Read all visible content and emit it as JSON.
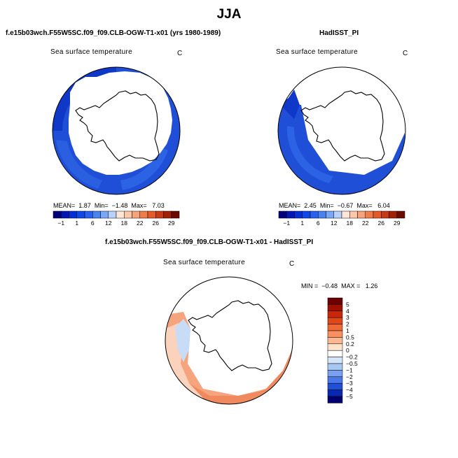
{
  "figure": {
    "season": "JJA",
    "panels": [
      {
        "title": "f.e15b03wch.F55W5SC.f09_f09.CLB-OGW-T1-x01 (yrs 1980-1989)",
        "variable": "Sea surface temperature",
        "unit": "C",
        "stats": {
          "mean_label": "MEAN=",
          "mean": "1.87",
          "min_label": "Min=",
          "min": "−1.48",
          "max_label": "Max=",
          "max": "7.03"
        },
        "colorbar": {
          "ticks": [
            "−1",
            "1",
            "6",
            "12",
            "18",
            "22",
            "26",
            "29"
          ],
          "colors": [
            "#00007a",
            "#0018b4",
            "#0030d8",
            "#1048e8",
            "#2860f0",
            "#4a82f0",
            "#7aa8f5",
            "#b8d0fa",
            "#fde6d8",
            "#fbc8aa",
            "#f6a27a",
            "#f07c4c",
            "#e55a2a",
            "#c83a14",
            "#a02008",
            "#6c0a00"
          ]
        }
      },
      {
        "title": "HadISST_PI",
        "variable": "Sea surface temperature",
        "unit": "C",
        "stats": {
          "mean_label": "MEAN=",
          "mean": "2.45",
          "min_label": "Min=",
          "min": "−0.67",
          "max_label": "Max=",
          "max": "6.04"
        },
        "colorbar": {
          "ticks": [
            "−1",
            "1",
            "6",
            "12",
            "18",
            "22",
            "26",
            "29"
          ],
          "colors": [
            "#00007a",
            "#0018b4",
            "#0030d8",
            "#1048e8",
            "#2860f0",
            "#4a82f0",
            "#7aa8f5",
            "#b8d0fa",
            "#fde6d8",
            "#fbc8aa",
            "#f6a27a",
            "#f07c4c",
            "#e55a2a",
            "#c83a14",
            "#a02008",
            "#6c0a00"
          ]
        }
      },
      {
        "title": "f.e15b03wch.F55W5SC.f09_f09.CLB-OGW-T1-x01 - HadISST_PI",
        "variable": "Sea surface temperature",
        "unit": "C",
        "stats": {
          "min_label": "MIN =",
          "min": "−0.48",
          "max_label": "MAX =",
          "max": "1.26"
        },
        "colorbar": {
          "levels": [
            "5",
            "4",
            "3",
            "2",
            "1",
            "0.5",
            "0.2",
            "0",
            "−0.2",
            "−0.5",
            "−1",
            "−2",
            "−3",
            "−4",
            "−5"
          ],
          "colors": [
            "#6c0000",
            "#a01000",
            "#c82808",
            "#e04818",
            "#f06a38",
            "#f89060",
            "#fbb890",
            "#fde2cc",
            "#ffffff",
            "#d4e4fa",
            "#a8c8f4",
            "#7aa0ee",
            "#4a78e8",
            "#2050d8",
            "#0828b0",
            "#000070"
          ]
        }
      }
    ]
  },
  "colors": {
    "ocean_blue": "#1f4fd6",
    "ocean_blue_dark": "#1038c8",
    "anomaly_red": "#f28a5e",
    "anomaly_pink": "#fbd2bc",
    "anomaly_blue": "#c8dcf8"
  }
}
